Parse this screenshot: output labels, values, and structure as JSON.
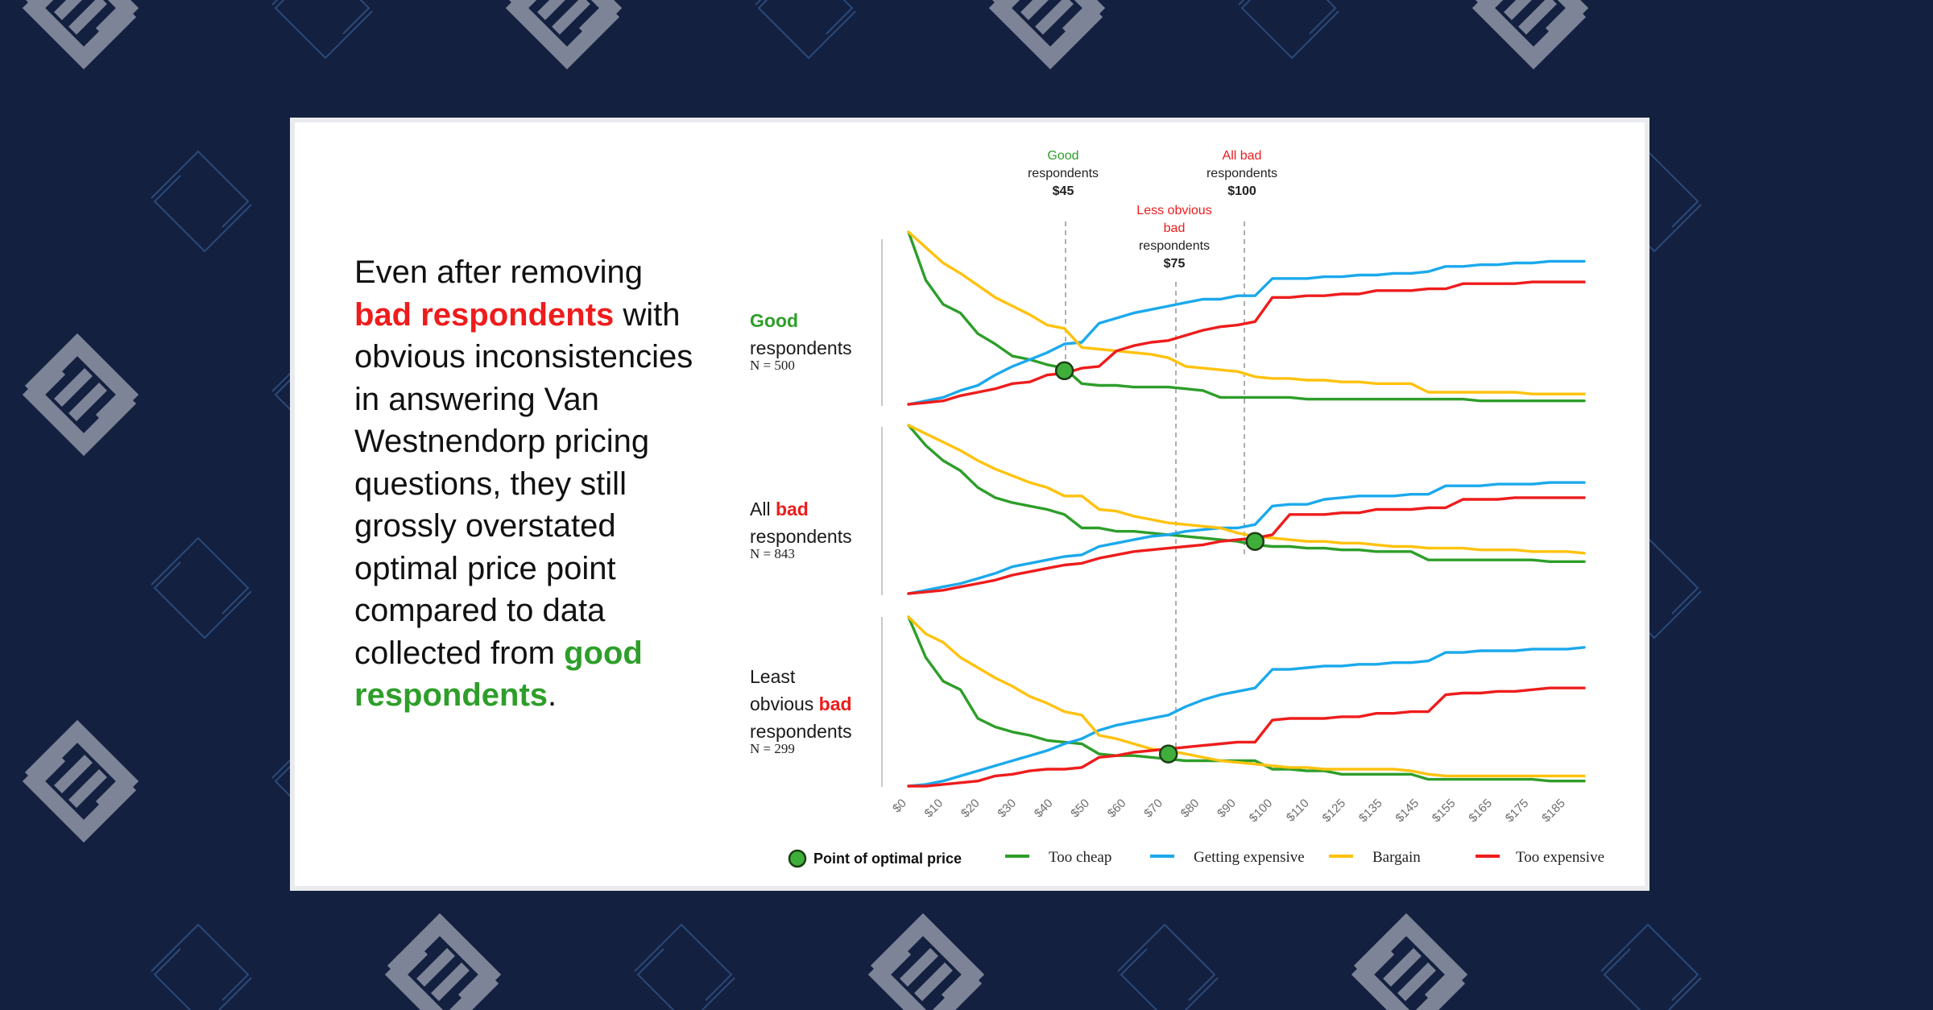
{
  "intro": {
    "p1": "Even after removing",
    "p2": "bad respondents",
    "p3": "with obvious inconsistencies in answering Van Westnendorp pricing questions, they still grossly overstated optimal price point compared to data collected from",
    "p4": "good respondents",
    "p5": "."
  },
  "colors": {
    "too_cheap": "#2e9e2a",
    "getting_expensive": "#1ba9ec",
    "bargain": "#ffc20e",
    "too_expensive": "#ee1c1c",
    "optimal_fill": "#3fae3a",
    "background": "#14203f",
    "pattern": "#7d8497"
  },
  "annotations": {
    "good": {
      "l1": "Good",
      "l2": "respondents",
      "l3": "$45"
    },
    "all_bad": {
      "l1": "All bad",
      "l2": "respondents",
      "l3": "$100"
    },
    "less_obvious": {
      "l1": "Less obvious",
      "l2": "bad",
      "l3": "respondents",
      "l4": "$75"
    }
  },
  "panels": {
    "good": {
      "label_a": "Good",
      "label_b": "respondents",
      "n": "N = 500"
    },
    "all_bad": {
      "label_a": "All ",
      "label_b": "bad",
      "label_c": "respondents",
      "n": "N = 843"
    },
    "least": {
      "label_a": "Least",
      "label_b": "obvious ",
      "label_c": "bad",
      "label_d": "respondents",
      "n": "N = 299"
    }
  },
  "legend": {
    "optimal": "Point of optimal price",
    "too_cheap": "Too cheap",
    "getting_expensive": "Getting expensive",
    "bargain": "Bargain",
    "too_expensive": "Too expensive"
  },
  "chart_data": {
    "type": "line",
    "x_tick_labels": [
      "$0",
      "$10",
      "$20",
      "$30",
      "$40",
      "$50",
      "$60",
      "$70",
      "$80",
      "$90",
      "$100",
      "$110",
      "$125",
      "$135",
      "$145",
      "$155",
      "$165",
      "$175",
      "$185"
    ],
    "x": [
      0,
      5,
      10,
      15,
      20,
      25,
      30,
      35,
      40,
      45,
      50,
      55,
      60,
      65,
      70,
      75,
      80,
      85,
      90,
      95,
      100,
      105,
      110,
      115,
      120,
      125,
      130,
      135,
      140,
      145,
      150,
      155,
      160,
      165,
      170,
      175,
      180,
      185,
      190,
      195
    ],
    "panels": [
      {
        "name": "Good respondents",
        "optimal_price": 45,
        "series": [
          {
            "name": "Too cheap",
            "values": [
              1,
              0.72,
              0.58,
              0.53,
              0.41,
              0.35,
              0.28,
              0.26,
              0.23,
              0.21,
              0.12,
              0.11,
              0.11,
              0.1,
              0.1,
              0.1,
              0.09,
              0.08,
              0.04,
              0.04,
              0.04,
              0.04,
              0.04,
              0.03,
              0.03,
              0.03,
              0.03,
              0.03,
              0.03,
              0.03,
              0.03,
              0.03,
              0.03,
              0.02,
              0.02,
              0.02,
              0.02,
              0.02,
              0.02,
              0.02
            ]
          },
          {
            "name": "Getting expensive",
            "values": [
              0,
              0.02,
              0.04,
              0.08,
              0.11,
              0.17,
              0.22,
              0.26,
              0.3,
              0.35,
              0.36,
              0.47,
              0.5,
              0.53,
              0.55,
              0.57,
              0.59,
              0.61,
              0.61,
              0.63,
              0.63,
              0.73,
              0.73,
              0.73,
              0.74,
              0.74,
              0.75,
              0.75,
              0.76,
              0.76,
              0.77,
              0.8,
              0.8,
              0.81,
              0.81,
              0.82,
              0.82,
              0.83,
              0.83,
              0.83
            ]
          },
          {
            "name": "Bargain",
            "values": [
              1,
              0.91,
              0.82,
              0.76,
              0.69,
              0.62,
              0.57,
              0.52,
              0.46,
              0.44,
              0.33,
              0.32,
              0.31,
              0.3,
              0.29,
              0.27,
              0.22,
              0.21,
              0.2,
              0.19,
              0.16,
              0.15,
              0.15,
              0.14,
              0.14,
              0.13,
              0.13,
              0.12,
              0.12,
              0.12,
              0.07,
              0.07,
              0.07,
              0.07,
              0.07,
              0.07,
              0.06,
              0.06,
              0.06,
              0.06
            ]
          },
          {
            "name": "Too expensive",
            "values": [
              0,
              0.01,
              0.02,
              0.05,
              0.07,
              0.09,
              0.12,
              0.13,
              0.17,
              0.18,
              0.21,
              0.22,
              0.31,
              0.34,
              0.36,
              0.37,
              0.4,
              0.43,
              0.45,
              0.46,
              0.48,
              0.62,
              0.62,
              0.63,
              0.63,
              0.64,
              0.64,
              0.66,
              0.66,
              0.66,
              0.67,
              0.67,
              0.7,
              0.7,
              0.7,
              0.7,
              0.71,
              0.71,
              0.71,
              0.71
            ]
          }
        ]
      },
      {
        "name": "All bad respondents",
        "optimal_price": 100,
        "series": [
          {
            "name": "Too cheap",
            "values": [
              1,
              0.88,
              0.79,
              0.73,
              0.63,
              0.57,
              0.54,
              0.52,
              0.5,
              0.47,
              0.39,
              0.39,
              0.37,
              0.37,
              0.36,
              0.35,
              0.34,
              0.33,
              0.32,
              0.31,
              0.29,
              0.28,
              0.28,
              0.27,
              0.27,
              0.26,
              0.26,
              0.25,
              0.25,
              0.25,
              0.2,
              0.2,
              0.2,
              0.2,
              0.2,
              0.2,
              0.2,
              0.19,
              0.19,
              0.19
            ]
          },
          {
            "name": "Getting expensive",
            "values": [
              0,
              0.02,
              0.04,
              0.06,
              0.09,
              0.12,
              0.16,
              0.18,
              0.2,
              0.22,
              0.23,
              0.28,
              0.3,
              0.32,
              0.34,
              0.35,
              0.37,
              0.38,
              0.39,
              0.39,
              0.41,
              0.52,
              0.53,
              0.53,
              0.56,
              0.57,
              0.58,
              0.58,
              0.58,
              0.59,
              0.59,
              0.64,
              0.64,
              0.64,
              0.65,
              0.65,
              0.65,
              0.66,
              0.66,
              0.66
            ]
          },
          {
            "name": "Bargain",
            "values": [
              1,
              0.95,
              0.9,
              0.85,
              0.79,
              0.74,
              0.7,
              0.66,
              0.63,
              0.58,
              0.58,
              0.5,
              0.49,
              0.46,
              0.44,
              0.42,
              0.41,
              0.4,
              0.39,
              0.36,
              0.34,
              0.33,
              0.32,
              0.31,
              0.31,
              0.3,
              0.3,
              0.29,
              0.28,
              0.28,
              0.27,
              0.27,
              0.27,
              0.26,
              0.26,
              0.26,
              0.25,
              0.25,
              0.25,
              0.24
            ]
          },
          {
            "name": "Too expensive",
            "values": [
              0,
              0.01,
              0.02,
              0.04,
              0.06,
              0.08,
              0.11,
              0.13,
              0.15,
              0.17,
              0.18,
              0.21,
              0.23,
              0.25,
              0.26,
              0.27,
              0.28,
              0.29,
              0.31,
              0.32,
              0.33,
              0.35,
              0.47,
              0.47,
              0.47,
              0.48,
              0.48,
              0.5,
              0.5,
              0.5,
              0.51,
              0.51,
              0.56,
              0.56,
              0.56,
              0.57,
              0.57,
              0.57,
              0.57,
              0.57
            ]
          }
        ]
      },
      {
        "name": "Least obvious bad respondents",
        "optimal_price": 75,
        "series": [
          {
            "name": "Too cheap",
            "values": [
              1,
              0.76,
              0.62,
              0.57,
              0.4,
              0.35,
              0.32,
              0.3,
              0.27,
              0.26,
              0.25,
              0.19,
              0.18,
              0.18,
              0.17,
              0.16,
              0.15,
              0.15,
              0.15,
              0.15,
              0.15,
              0.1,
              0.1,
              0.09,
              0.09,
              0.07,
              0.07,
              0.07,
              0.07,
              0.07,
              0.04,
              0.04,
              0.04,
              0.04,
              0.04,
              0.04,
              0.04,
              0.03,
              0.03,
              0.03
            ]
          },
          {
            "name": "Getting expensive",
            "values": [
              0,
              0.01,
              0.03,
              0.06,
              0.09,
              0.12,
              0.15,
              0.18,
              0.21,
              0.25,
              0.28,
              0.33,
              0.36,
              0.38,
              0.4,
              0.42,
              0.47,
              0.51,
              0.54,
              0.56,
              0.58,
              0.69,
              0.69,
              0.7,
              0.71,
              0.71,
              0.72,
              0.72,
              0.73,
              0.73,
              0.74,
              0.79,
              0.79,
              0.8,
              0.8,
              0.8,
              0.81,
              0.81,
              0.81,
              0.82
            ]
          },
          {
            "name": "Bargain",
            "values": [
              1,
              0.9,
              0.85,
              0.76,
              0.7,
              0.64,
              0.59,
              0.53,
              0.49,
              0.44,
              0.42,
              0.3,
              0.28,
              0.25,
              0.22,
              0.21,
              0.19,
              0.17,
              0.15,
              0.14,
              0.13,
              0.12,
              0.11,
              0.11,
              0.1,
              0.1,
              0.1,
              0.1,
              0.1,
              0.09,
              0.07,
              0.06,
              0.06,
              0.06,
              0.06,
              0.06,
              0.06,
              0.06,
              0.06,
              0.06
            ]
          },
          {
            "name": "Too expensive",
            "values": [
              0,
              0,
              0.01,
              0.02,
              0.03,
              0.06,
              0.07,
              0.09,
              0.1,
              0.1,
              0.11,
              0.17,
              0.18,
              0.2,
              0.21,
              0.22,
              0.23,
              0.24,
              0.25,
              0.26,
              0.26,
              0.39,
              0.4,
              0.4,
              0.4,
              0.41,
              0.41,
              0.43,
              0.43,
              0.44,
              0.44,
              0.54,
              0.55,
              0.55,
              0.56,
              0.56,
              0.57,
              0.58,
              0.58,
              0.58
            ]
          }
        ]
      }
    ]
  }
}
